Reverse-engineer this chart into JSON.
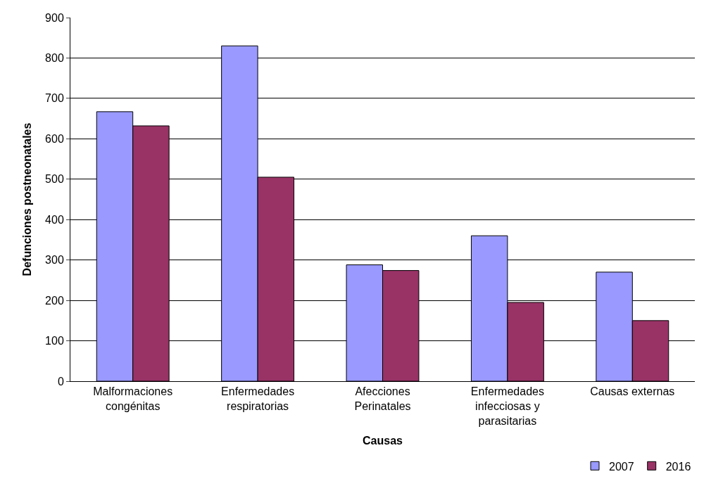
{
  "chart_data": {
    "type": "bar",
    "xlabel": "Causas",
    "ylabel": "Defunciones postneonatales",
    "categories": [
      "Malformaciones\ncongénitas",
      "Enfermedades\nrespiratorias",
      "Afecciones\nPerinatales",
      "Enfermedades\ninfecciosas y\nparasitarias",
      "Causas externas"
    ],
    "series": [
      {
        "name": "2007",
        "color": "#9999ff",
        "values": [
          667,
          830,
          288,
          360,
          270
        ]
      },
      {
        "name": "2016",
        "color": "#993366",
        "values": [
          632,
          505,
          274,
          195,
          150
        ]
      }
    ],
    "ylim": [
      0,
      900
    ],
    "yticks": [
      0,
      100,
      200,
      300,
      400,
      500,
      600,
      700,
      800,
      900
    ],
    "grid": "y",
    "legend": "bottom right"
  }
}
